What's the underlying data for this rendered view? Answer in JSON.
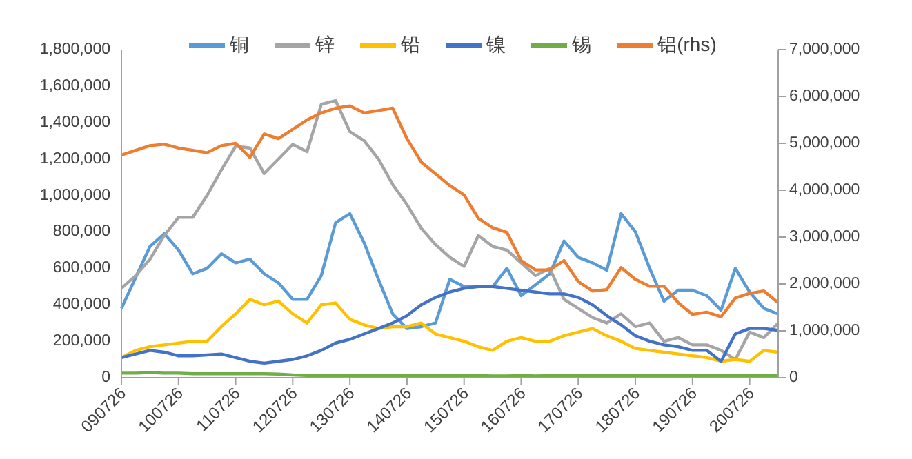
{
  "chart_data": {
    "type": "line",
    "categories": [
      "090726",
      null,
      null,
      null,
      "100726",
      null,
      null,
      null,
      "110726",
      null,
      null,
      null,
      "120726",
      null,
      null,
      null,
      "130726",
      null,
      null,
      null,
      "140726",
      null,
      null,
      null,
      "150726",
      null,
      null,
      null,
      "160726",
      null,
      null,
      null,
      "170726",
      null,
      null,
      null,
      "180726",
      null,
      null,
      null,
      "190726",
      null,
      null,
      null,
      "200726",
      null,
      null
    ],
    "series": [
      {
        "name": "铜",
        "color": "#5b9bd5",
        "values": [
          380000,
          550000,
          720000,
          790000,
          700000,
          570000,
          600000,
          680000,
          630000,
          650000,
          570000,
          520000,
          430000,
          430000,
          560000,
          850000,
          900000,
          740000,
          540000,
          350000,
          270000,
          280000,
          300000,
          540000,
          500000,
          500000,
          500000,
          600000,
          450000,
          510000,
          570000,
          750000,
          660000,
          630000,
          590000,
          900000,
          800000,
          600000,
          420000,
          480000,
          480000,
          450000,
          370000,
          600000,
          470000,
          380000,
          350000
        ]
      },
      {
        "name": "锌",
        "color": "#a5a5a5",
        "values": [
          490000,
          560000,
          650000,
          780000,
          880000,
          880000,
          1000000,
          1140000,
          1270000,
          1260000,
          1120000,
          1200000,
          1280000,
          1240000,
          1500000,
          1520000,
          1350000,
          1300000,
          1200000,
          1060000,
          950000,
          820000,
          730000,
          660000,
          610000,
          780000,
          720000,
          700000,
          630000,
          560000,
          600000,
          430000,
          380000,
          330000,
          300000,
          350000,
          280000,
          300000,
          200000,
          220000,
          180000,
          180000,
          150000,
          100000,
          250000,
          220000,
          300000
        ]
      },
      {
        "name": "铅",
        "color": "#ffc000",
        "values": [
          110000,
          150000,
          170000,
          180000,
          190000,
          200000,
          200000,
          280000,
          350000,
          430000,
          400000,
          420000,
          350000,
          300000,
          400000,
          410000,
          320000,
          290000,
          270000,
          280000,
          280000,
          300000,
          240000,
          220000,
          200000,
          170000,
          150000,
          200000,
          220000,
          200000,
          200000,
          230000,
          250000,
          270000,
          230000,
          200000,
          160000,
          150000,
          140000,
          130000,
          120000,
          110000,
          90000,
          100000,
          90000,
          150000,
          140000
        ]
      },
      {
        "name": "镍",
        "color": "#4472c4",
        "values": [
          110000,
          130000,
          150000,
          140000,
          120000,
          120000,
          125000,
          130000,
          110000,
          90000,
          80000,
          90000,
          100000,
          120000,
          150000,
          190000,
          210000,
          240000,
          270000,
          300000,
          340000,
          400000,
          440000,
          470000,
          490000,
          500000,
          500000,
          490000,
          480000,
          470000,
          460000,
          460000,
          440000,
          400000,
          340000,
          290000,
          230000,
          200000,
          180000,
          170000,
          150000,
          150000,
          90000,
          240000,
          270000,
          270000,
          260000
        ]
      },
      {
        "name": "锡",
        "color": "#70ad47",
        "values": [
          25000,
          25000,
          28000,
          25000,
          25000,
          22000,
          22000,
          22000,
          22000,
          22000,
          22000,
          20000,
          15000,
          12000,
          12000,
          12000,
          12000,
          12000,
          12000,
          12000,
          12000,
          12000,
          12000,
          12000,
          12000,
          12000,
          10000,
          10000,
          12000,
          10000,
          12000,
          12000,
          12000,
          12000,
          12000,
          12000,
          12000,
          12000,
          12000,
          12000,
          12000,
          12000,
          12000,
          12000,
          12000,
          12000,
          12000
        ]
      },
      {
        "name": "铝(rhs)",
        "color": "#ed7d31",
        "axis": "y2",
        "values": [
          4750000,
          4850000,
          4950000,
          4980000,
          4900000,
          4850000,
          4800000,
          4950000,
          5000000,
          4700000,
          5200000,
          5100000,
          5300000,
          5500000,
          5650000,
          5750000,
          5800000,
          5650000,
          5700000,
          5750000,
          5100000,
          4600000,
          4350000,
          4100000,
          3900000,
          3400000,
          3200000,
          3100000,
          2500000,
          2300000,
          2300000,
          2500000,
          2050000,
          1850000,
          1880000,
          2350000,
          2100000,
          1950000,
          1950000,
          1600000,
          1350000,
          1400000,
          1300000,
          1700000,
          1800000,
          1850000,
          1600000
        ]
      }
    ],
    "ylim": [
      0,
      1800000
    ],
    "yticks": [
      {
        "value": 0,
        "label": "0"
      },
      {
        "value": 200000,
        "label": "200,000"
      },
      {
        "value": 400000,
        "label": "400,000"
      },
      {
        "value": 600000,
        "label": "600,000"
      },
      {
        "value": 800000,
        "label": "800,000"
      },
      {
        "value": 1000000,
        "label": "1,000,000"
      },
      {
        "value": 1200000,
        "label": "1,200,000"
      },
      {
        "value": 1400000,
        "label": "1,400,000"
      },
      {
        "value": 1600000,
        "label": "1,600,000"
      },
      {
        "value": 1800000,
        "label": "1,800,000"
      }
    ],
    "y2lim": [
      0,
      7000000
    ],
    "y2ticks": [
      {
        "value": 0,
        "label": "0"
      },
      {
        "value": 1000000,
        "label": "1,000,000"
      },
      {
        "value": 2000000,
        "label": "2,000,000"
      },
      {
        "value": 3000000,
        "label": "3,000,000"
      },
      {
        "value": 4000000,
        "label": "4,000,000"
      },
      {
        "value": 5000000,
        "label": "5,000,000"
      },
      {
        "value": 6000000,
        "label": "6,000,000"
      },
      {
        "value": 7000000,
        "label": "7,000,000"
      }
    ],
    "grid": false,
    "legend": "top",
    "marker": "none",
    "line_style": "solid"
  }
}
